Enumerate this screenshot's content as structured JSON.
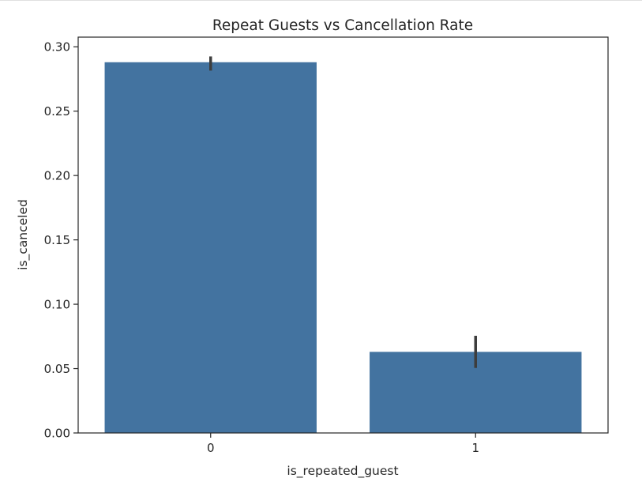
{
  "chart_data": {
    "type": "bar",
    "title": "Repeat Guests vs Cancellation Rate",
    "xlabel": "is_repeated_guest",
    "ylabel": "is_canceled",
    "categories": [
      "0",
      "1"
    ],
    "values": [
      0.288,
      0.063
    ],
    "error_bars": [
      {
        "low": 0.2815,
        "high": 0.2925
      },
      {
        "low": 0.0505,
        "high": 0.0755
      }
    ],
    "ylim": [
      0,
      0.3075
    ],
    "yticks": [
      "0.00",
      "0.05",
      "0.10",
      "0.15",
      "0.20",
      "0.25",
      "0.30"
    ],
    "grid": false,
    "legend": "none",
    "colors": {
      "bar": "#4373a0",
      "error_bar": "#3d3d3d",
      "axis": "#262626"
    }
  }
}
